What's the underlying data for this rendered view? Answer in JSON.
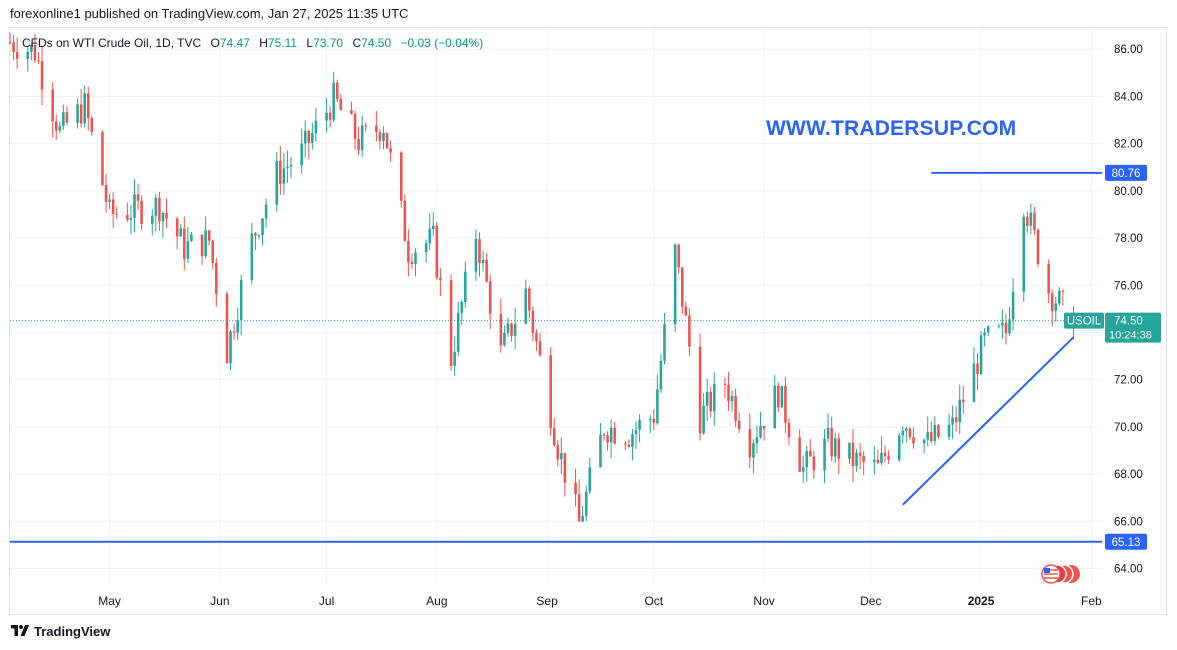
{
  "header": {
    "published_by": "forexonline1 published on TradingView.com, Jan 27, 2025 11:35 UTC"
  },
  "legend": {
    "symbol": "CFDs on WTI Crude Oil, 1D, TVC",
    "o_label": "O",
    "o": "74.47",
    "h_label": "H",
    "h": "75.11",
    "l_label": "L",
    "l": "73.70",
    "c_label": "C",
    "c": "74.50",
    "change": "−0.03 (−0.04%)"
  },
  "watermark": "WWW.TRADERSUP.COM",
  "footer": {
    "brand": "TradingView"
  },
  "colors": {
    "up": "#26a69a",
    "down": "#ef5350",
    "drawing": "#2962ff",
    "current_price": "#26a69a"
  },
  "chart_data": {
    "type": "candlestick",
    "instrument": "CFDs on WTI Crude Oil",
    "interval": "1D",
    "ylim": [
      63.3,
      86.9
    ],
    "y_ticks": [
      "64.00",
      "66.00",
      "68.00",
      "70.00",
      "72.00",
      "74.00",
      "76.00",
      "78.00",
      "80.00",
      "82.00",
      "84.00",
      "86.00"
    ],
    "x_ticks": [
      {
        "label": "May",
        "date": "2024-05-01"
      },
      {
        "label": "Jun",
        "date": "2024-06-01"
      },
      {
        "label": "Jul",
        "date": "2024-07-01"
      },
      {
        "label": "Aug",
        "date": "2024-08-01"
      },
      {
        "label": "Sep",
        "date": "2024-09-01"
      },
      {
        "label": "Oct",
        "date": "2024-10-01"
      },
      {
        "label": "Nov",
        "date": "2024-11-01"
      },
      {
        "label": "Dec",
        "date": "2024-12-01"
      },
      {
        "label": "2025",
        "date": "2025-01-01"
      },
      {
        "label": "Feb",
        "date": "2025-02-01"
      }
    ],
    "date_range": [
      "2024-04-03",
      "2025-02-04"
    ],
    "current_price": {
      "symbol": "USOIL",
      "value": "74.50",
      "countdown": "10:24:38",
      "price": 74.5
    },
    "horizontal_levels": [
      {
        "label": "80.76",
        "price": 80.76,
        "from_date": "2024-12-18"
      },
      {
        "label": "65.13",
        "price": 65.13,
        "from_date": "2024-04-03"
      }
    ],
    "trendline": {
      "from": {
        "date": "2024-12-10",
        "price": 66.7
      },
      "to": {
        "date": "2025-01-27",
        "price": 73.8
      }
    },
    "candles_close": [
      {
        "date": "2024-04-03",
        "c": 86.3
      },
      {
        "date": "2024-04-10",
        "c": 85.9
      },
      {
        "date": "2024-04-17",
        "c": 82.5
      },
      {
        "date": "2024-04-24",
        "c": 83.6
      },
      {
        "date": "2024-05-01",
        "c": 79.0
      },
      {
        "date": "2024-05-08",
        "c": 79.2
      },
      {
        "date": "2024-05-15",
        "c": 79.4
      },
      {
        "date": "2024-05-22",
        "c": 77.6
      },
      {
        "date": "2024-05-29",
        "c": 77.9
      },
      {
        "date": "2024-06-03",
        "c": 73.2
      },
      {
        "date": "2024-06-10",
        "c": 77.9
      },
      {
        "date": "2024-06-17",
        "c": 80.7
      },
      {
        "date": "2024-06-24",
        "c": 81.6
      },
      {
        "date": "2024-07-03",
        "c": 83.9
      },
      {
        "date": "2024-07-10",
        "c": 82.1
      },
      {
        "date": "2024-07-17",
        "c": 82.8
      },
      {
        "date": "2024-07-24",
        "c": 77.5
      },
      {
        "date": "2024-07-31",
        "c": 77.9
      },
      {
        "date": "2024-08-05",
        "c": 72.9
      },
      {
        "date": "2024-08-12",
        "c": 78.2
      },
      {
        "date": "2024-08-19",
        "c": 73.1
      },
      {
        "date": "2024-08-26",
        "c": 75.7
      },
      {
        "date": "2024-09-04",
        "c": 69.2
      },
      {
        "date": "2024-09-10",
        "c": 65.9
      },
      {
        "date": "2024-09-17",
        "c": 70.0
      },
      {
        "date": "2024-09-24",
        "c": 69.7
      },
      {
        "date": "2024-10-01",
        "c": 70.5
      },
      {
        "date": "2024-10-07",
        "c": 77.4
      },
      {
        "date": "2024-10-14",
        "c": 70.4
      },
      {
        "date": "2024-10-21",
        "c": 71.9
      },
      {
        "date": "2024-10-28",
        "c": 69.4
      },
      {
        "date": "2024-11-05",
        "c": 71.5
      },
      {
        "date": "2024-11-12",
        "c": 68.2
      },
      {
        "date": "2024-11-19",
        "c": 69.3
      },
      {
        "date": "2024-11-26",
        "c": 68.6
      },
      {
        "date": "2024-12-03",
        "c": 68.2
      },
      {
        "date": "2024-12-10",
        "c": 70.3
      },
      {
        "date": "2024-12-17",
        "c": 69.3
      },
      {
        "date": "2024-12-24",
        "c": 70.0
      },
      {
        "date": "2025-01-02",
        "c": 73.6
      },
      {
        "date": "2025-01-08",
        "c": 74.0
      },
      {
        "date": "2025-01-13",
        "c": 79.6
      },
      {
        "date": "2025-01-20",
        "c": 75.8
      },
      {
        "date": "2025-01-27",
        "c": 74.5
      }
    ]
  }
}
